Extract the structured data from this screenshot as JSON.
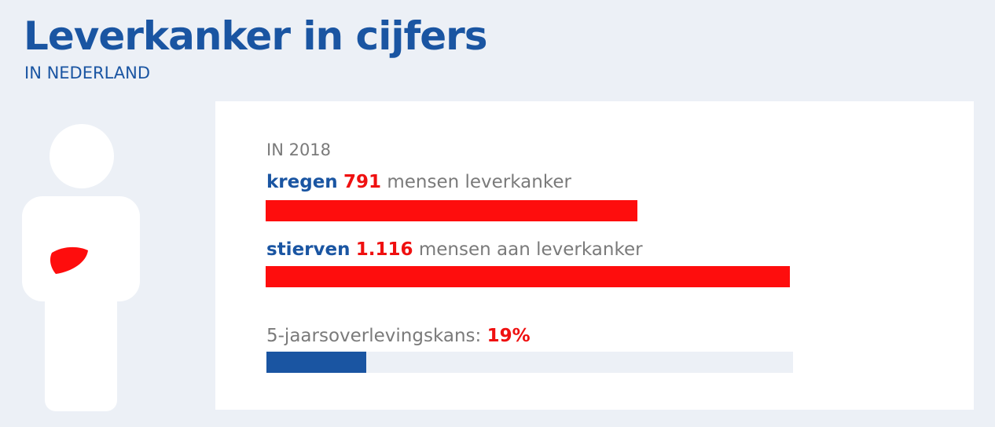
{
  "header": {
    "title": "Leverkanker in cijfers",
    "subtitle": "IN NEDERLAND"
  },
  "icons": {
    "person": "person-silhouette-icon",
    "liver": "liver-icon"
  },
  "colors": {
    "brand_blue": "#1a55a2",
    "highlight_red": "#fe0d0d",
    "muted_gray": "#7a7a7a",
    "track": "#ecf0f6"
  },
  "chart_data": {
    "type": "bar",
    "orientation": "horizontal",
    "year_label": "IN 2018",
    "stats": [
      {
        "prefix": "kregen",
        "value_text": "791",
        "suffix": "mensen leverkanker",
        "value": 791
      },
      {
        "prefix": "stierven",
        "value_text": "1.116",
        "suffix": "mensen aan leverkanker",
        "value": 1116
      }
    ],
    "survival": {
      "label": "5-jaarsoverlevingskans:",
      "value_text": "19%",
      "value": 19,
      "max": 100
    }
  }
}
